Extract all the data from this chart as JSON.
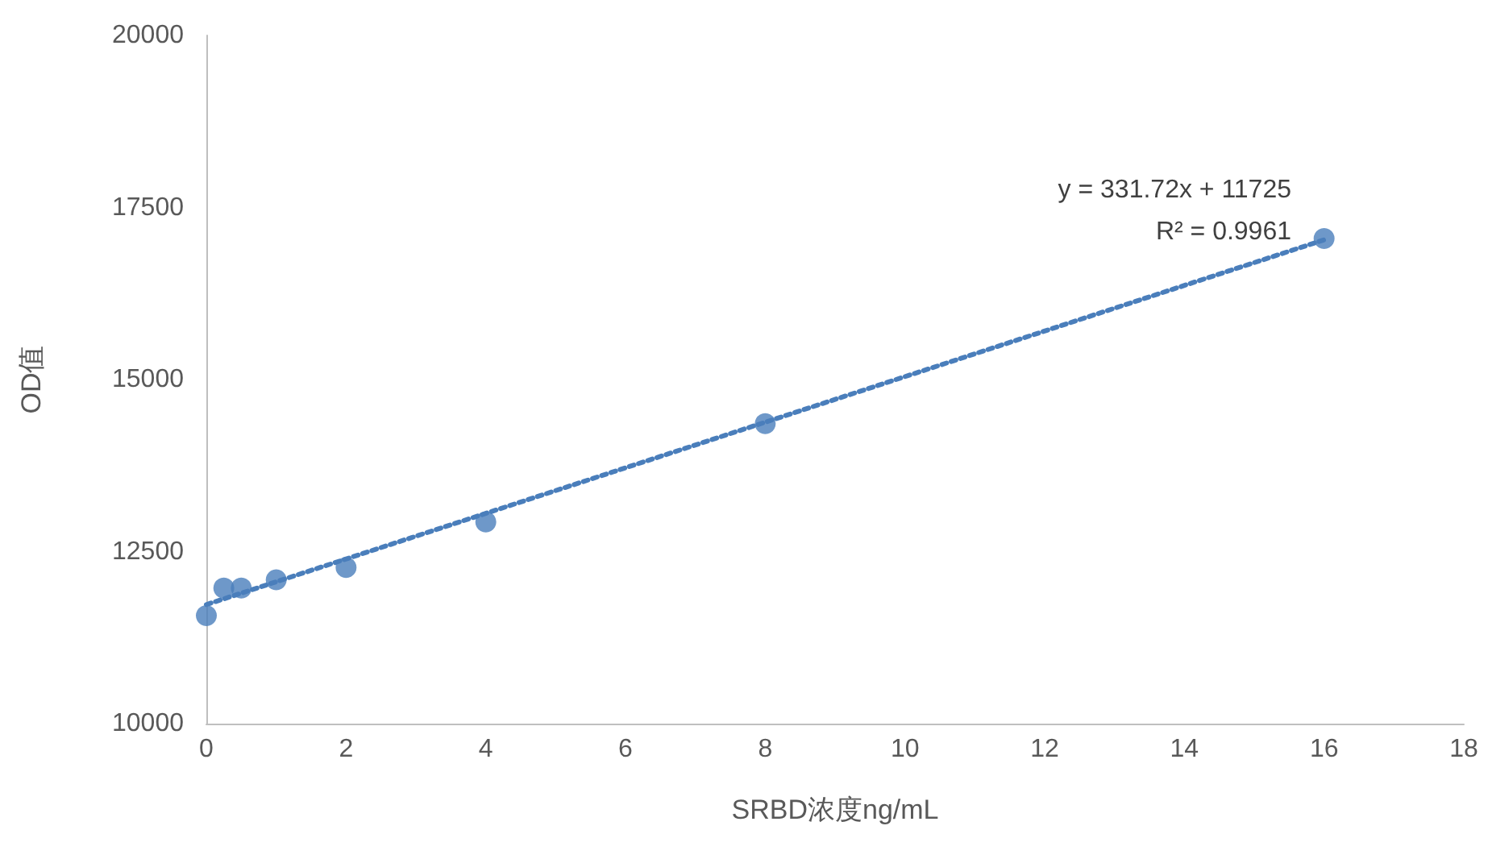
{
  "chart_data": {
    "type": "scatter",
    "xlabel": "SRBD浓度ng/mL",
    "ylabel": "OD值",
    "xlim": [
      0,
      18
    ],
    "xticks": [
      0,
      2,
      4,
      6,
      8,
      10,
      12,
      14,
      16,
      18
    ],
    "ylim": [
      10000,
      20000
    ],
    "yticks": [
      10000,
      12500,
      15000,
      17500,
      20000
    ],
    "grid": false,
    "series": [
      {
        "type": "scatter",
        "color": "#4a7ebb",
        "marker": "circle",
        "x": [
          0,
          0.25,
          0.5,
          1,
          2,
          4,
          8,
          16
        ],
        "values": [
          11570,
          11970,
          11970,
          12090,
          12270,
          12930,
          14360,
          17050
        ]
      },
      {
        "type": "line",
        "color": "#4a7ebb",
        "marker": "none",
        "line_style": "dotted",
        "x": [
          0,
          16
        ],
        "values": [
          11730,
          17030
        ]
      }
    ],
    "annotations": [
      "y = 331.72x + 11725",
      "R² = 0.9961"
    ]
  }
}
